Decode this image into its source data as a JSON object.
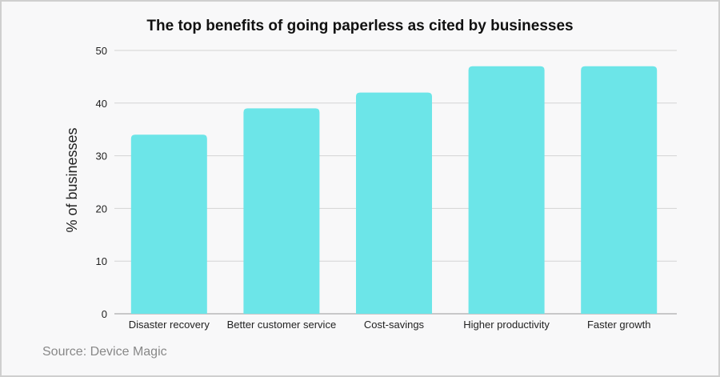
{
  "chart_data": {
    "type": "bar",
    "title": "The top benefits of going paperless as cited by businesses",
    "xlabel": "",
    "ylabel": "% of businesses",
    "categories": [
      "Disaster recovery",
      "Better customer service",
      "Cost-savings",
      "Higher productivity",
      "Faster growth"
    ],
    "values": [
      34,
      39,
      42,
      47,
      47
    ],
    "ylim": [
      0,
      50
    ],
    "yticks": [
      0,
      10,
      20,
      30,
      40,
      50
    ],
    "grid": true,
    "legend": "none",
    "bar_color": "#6ce5e8",
    "source": "Source: Device Magic"
  }
}
